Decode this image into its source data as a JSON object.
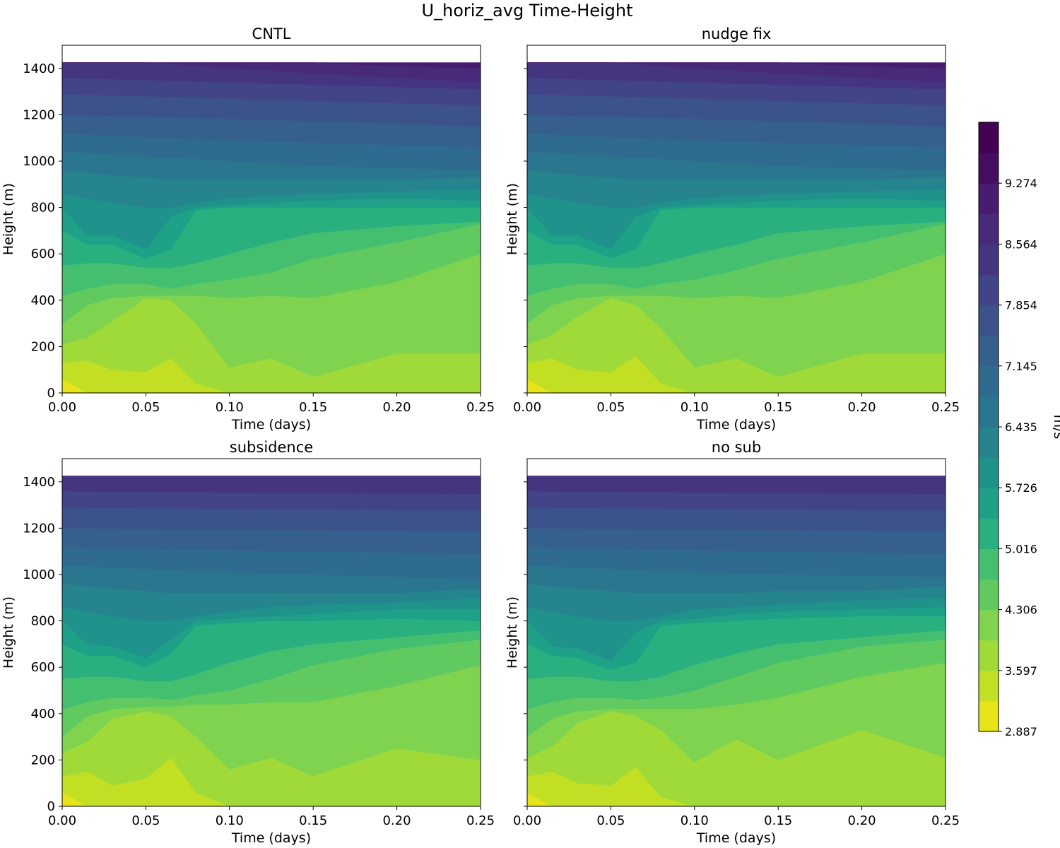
{
  "figure": {
    "title": "U_horiz_avg Time-Height",
    "colorbar_label": "m/s",
    "colorbar_ticks": [
      "2.887",
      "3.597",
      "4.306",
      "5.016",
      "5.726",
      "6.435",
      "7.145",
      "7.854",
      "8.564",
      "9.274"
    ]
  },
  "chart_data": {
    "type": "contourf",
    "title": "U_horiz_avg Time-Height",
    "units": "m/s",
    "colormap": "viridis_r",
    "levels": [
      2.887,
      3.242,
      3.597,
      3.951,
      4.306,
      4.661,
      5.016,
      5.371,
      5.726,
      6.081,
      6.435,
      6.79,
      7.145,
      7.5,
      7.854,
      8.209,
      8.564,
      8.919,
      9.274,
      9.629,
      9.984
    ],
    "level_colors": [
      "#e7e419",
      "#c2df23",
      "#a0da39",
      "#7fd34e",
      "#60ca60",
      "#44bf70",
      "#2ab07f",
      "#1fa188",
      "#20928c",
      "#25848e",
      "#2a768e",
      "#2f6b8e",
      "#355f8d",
      "#3b528b",
      "#414487",
      "#453581",
      "#472a7a",
      "#481c6e",
      "#470d60",
      "#440154"
    ],
    "xlabel": "Time (days)",
    "ylabel": "Height (m)",
    "xlim": [
      0,
      0.25
    ],
    "ylim": [
      0,
      1500
    ],
    "data_top": 1425,
    "xticks": [
      "0.00",
      "0.05",
      "0.10",
      "0.15",
      "0.20",
      "0.25"
    ],
    "yticks": [
      "0",
      "200",
      "400",
      "600",
      "800",
      "1000",
      "1200",
      "1400"
    ],
    "panels": [
      {
        "title": "CNTL",
        "time": [
          0,
          0.015,
          0.03,
          0.05,
          0.065,
          0.08,
          0.1,
          0.125,
          0.15,
          0.2,
          0.25
        ],
        "boundaries_m": [
          [
            60,
            0,
            0,
            0,
            0,
            0,
            0,
            0,
            0,
            0,
            0
          ],
          [
            130,
            140,
            100,
            90,
            150,
            40,
            0,
            0,
            0,
            0,
            0
          ],
          [
            210,
            240,
            310,
            410,
            400,
            300,
            110,
            150,
            70,
            170,
            170
          ],
          [
            300,
            380,
            410,
            420,
            420,
            420,
            410,
            420,
            410,
            480,
            600
          ],
          [
            420,
            450,
            470,
            470,
            450,
            470,
            490,
            520,
            580,
            650,
            730
          ],
          [
            550,
            560,
            560,
            540,
            540,
            560,
            600,
            650,
            690,
            720,
            740
          ],
          [
            700,
            640,
            640,
            580,
            620,
            790,
            800,
            800,
            800,
            800,
            800
          ],
          [
            800,
            680,
            680,
            620,
            760,
            800,
            810,
            820,
            830,
            840,
            830
          ],
          [
            860,
            840,
            820,
            800,
            800,
            820,
            840,
            850,
            860,
            870,
            880
          ],
          [
            960,
            950,
            940,
            930,
            920,
            920,
            920,
            920,
            920,
            920,
            930
          ],
          [
            1040,
            1035,
            1030,
            1020,
            1015,
            1010,
            1000,
            990,
            980,
            970,
            960
          ],
          [
            1120,
            1115,
            1110,
            1105,
            1100,
            1095,
            1090,
            1085,
            1080,
            1070,
            1060
          ],
          [
            1200,
            1198,
            1196,
            1193,
            1190,
            1187,
            1183,
            1178,
            1173,
            1163,
            1150
          ],
          [
            1290,
            1287,
            1284,
            1280,
            1277,
            1274,
            1270,
            1265,
            1260,
            1250,
            1240
          ],
          [
            1360,
            1357,
            1354,
            1350,
            1347,
            1344,
            1340,
            1335,
            1330,
            1320,
            1310
          ],
          [
            1430,
            1430,
            1430,
            1428,
            1420,
            1410,
            1400,
            1390,
            1380,
            1360,
            1340
          ],
          [
            1440,
            1440,
            1440,
            1440,
            1440,
            1440,
            1435,
            1430,
            1425,
            1410,
            1400
          ]
        ]
      },
      {
        "title": "nudge fix",
        "time": [
          0,
          0.015,
          0.03,
          0.05,
          0.065,
          0.08,
          0.1,
          0.125,
          0.15,
          0.2,
          0.25
        ],
        "boundaries_m": [
          [
            60,
            0,
            0,
            0,
            0,
            0,
            0,
            0,
            0,
            0,
            0
          ],
          [
            130,
            150,
            100,
            90,
            160,
            40,
            0,
            0,
            0,
            0,
            0
          ],
          [
            210,
            250,
            330,
            410,
            380,
            280,
            110,
            150,
            70,
            170,
            170
          ],
          [
            300,
            380,
            410,
            420,
            420,
            420,
            410,
            420,
            410,
            480,
            600
          ],
          [
            420,
            450,
            470,
            470,
            450,
            470,
            490,
            530,
            580,
            650,
            730
          ],
          [
            550,
            560,
            560,
            540,
            540,
            560,
            600,
            640,
            690,
            720,
            740
          ],
          [
            700,
            640,
            640,
            580,
            620,
            790,
            800,
            800,
            800,
            800,
            800
          ],
          [
            800,
            680,
            680,
            620,
            760,
            800,
            810,
            820,
            830,
            840,
            830
          ],
          [
            860,
            840,
            820,
            800,
            800,
            820,
            840,
            850,
            860,
            870,
            880
          ],
          [
            960,
            950,
            940,
            930,
            920,
            920,
            920,
            920,
            920,
            920,
            930
          ],
          [
            1040,
            1035,
            1030,
            1020,
            1015,
            1010,
            1000,
            990,
            980,
            970,
            960
          ],
          [
            1120,
            1115,
            1110,
            1105,
            1100,
            1095,
            1090,
            1085,
            1080,
            1070,
            1060
          ],
          [
            1200,
            1198,
            1196,
            1193,
            1190,
            1187,
            1183,
            1178,
            1173,
            1163,
            1150
          ],
          [
            1290,
            1287,
            1284,
            1280,
            1277,
            1274,
            1270,
            1265,
            1260,
            1250,
            1240
          ],
          [
            1360,
            1357,
            1354,
            1350,
            1347,
            1344,
            1340,
            1335,
            1330,
            1320,
            1310
          ],
          [
            1430,
            1430,
            1430,
            1428,
            1420,
            1410,
            1400,
            1390,
            1380,
            1360,
            1340
          ],
          [
            1440,
            1440,
            1440,
            1440,
            1440,
            1440,
            1435,
            1430,
            1425,
            1410,
            1400
          ]
        ]
      },
      {
        "title": "subsidence",
        "time": [
          0,
          0.015,
          0.03,
          0.05,
          0.065,
          0.08,
          0.1,
          0.125,
          0.15,
          0.2,
          0.25
        ],
        "boundaries_m": [
          [
            60,
            0,
            0,
            0,
            0,
            0,
            0,
            0,
            0,
            0,
            0
          ],
          [
            130,
            150,
            90,
            120,
            210,
            60,
            0,
            0,
            0,
            0,
            0
          ],
          [
            230,
            280,
            380,
            410,
            390,
            300,
            160,
            210,
            130,
            250,
            200
          ],
          [
            300,
            390,
            420,
            430,
            430,
            440,
            440,
            450,
            450,
            520,
            610
          ],
          [
            420,
            450,
            470,
            470,
            460,
            480,
            500,
            550,
            610,
            680,
            720
          ],
          [
            550,
            560,
            560,
            540,
            540,
            570,
            620,
            670,
            700,
            730,
            760
          ],
          [
            700,
            650,
            650,
            600,
            660,
            780,
            790,
            800,
            800,
            810,
            800
          ],
          [
            800,
            700,
            690,
            640,
            720,
            800,
            810,
            820,
            830,
            850,
            850
          ],
          [
            860,
            840,
            820,
            800,
            800,
            820,
            840,
            860,
            870,
            880,
            900
          ],
          [
            960,
            950,
            940,
            930,
            920,
            920,
            920,
            920,
            920,
            920,
            940
          ],
          [
            1040,
            1035,
            1030,
            1025,
            1020,
            1015,
            1010,
            1005,
            1000,
            990,
            980
          ],
          [
            1120,
            1118,
            1115,
            1112,
            1110,
            1108,
            1105,
            1102,
            1100,
            1095,
            1090
          ],
          [
            1200,
            1199,
            1198,
            1197,
            1196,
            1195,
            1194,
            1193,
            1192,
            1190,
            1188
          ],
          [
            1290,
            1289,
            1288,
            1287,
            1286,
            1285,
            1284,
            1283,
            1282,
            1280,
            1278
          ],
          [
            1360,
            1359,
            1358,
            1357,
            1356,
            1355,
            1354,
            1353,
            1352,
            1350,
            1348
          ],
          [
            1440,
            1440,
            1440,
            1440,
            1440,
            1440,
            1440,
            1440,
            1440,
            1440,
            1440
          ]
        ]
      },
      {
        "title": "no sub",
        "time": [
          0,
          0.015,
          0.03,
          0.05,
          0.065,
          0.08,
          0.1,
          0.125,
          0.15,
          0.2,
          0.25
        ],
        "boundaries_m": [
          [
            60,
            0,
            0,
            0,
            0,
            0,
            0,
            0,
            0,
            0,
            0
          ],
          [
            130,
            150,
            100,
            90,
            170,
            40,
            0,
            0,
            0,
            0,
            0
          ],
          [
            210,
            260,
            360,
            410,
            390,
            330,
            190,
            290,
            200,
            330,
            210
          ],
          [
            300,
            380,
            410,
            420,
            420,
            420,
            420,
            440,
            470,
            560,
            620
          ],
          [
            420,
            450,
            470,
            470,
            460,
            470,
            500,
            560,
            620,
            690,
            720
          ],
          [
            550,
            560,
            560,
            540,
            540,
            560,
            610,
            660,
            700,
            730,
            760
          ],
          [
            700,
            650,
            640,
            590,
            620,
            780,
            790,
            800,
            810,
            820,
            820
          ],
          [
            800,
            690,
            680,
            630,
            750,
            800,
            810,
            830,
            840,
            850,
            860
          ],
          [
            860,
            840,
            820,
            800,
            800,
            820,
            850,
            860,
            870,
            890,
            900
          ],
          [
            960,
            950,
            940,
            930,
            920,
            920,
            920,
            920,
            930,
            930,
            950
          ],
          [
            1040,
            1035,
            1030,
            1025,
            1020,
            1015,
            1010,
            1005,
            1000,
            995,
            990
          ],
          [
            1120,
            1118,
            1115,
            1112,
            1110,
            1108,
            1105,
            1102,
            1100,
            1095,
            1090
          ],
          [
            1200,
            1199,
            1198,
            1197,
            1196,
            1195,
            1194,
            1193,
            1192,
            1190,
            1188
          ],
          [
            1290,
            1289,
            1288,
            1287,
            1286,
            1285,
            1284,
            1283,
            1282,
            1280,
            1278
          ],
          [
            1360,
            1359,
            1358,
            1357,
            1356,
            1355,
            1354,
            1353,
            1352,
            1350,
            1348
          ],
          [
            1440,
            1440,
            1440,
            1440,
            1440,
            1440,
            1440,
            1440,
            1440,
            1440,
            1440
          ]
        ]
      }
    ]
  }
}
